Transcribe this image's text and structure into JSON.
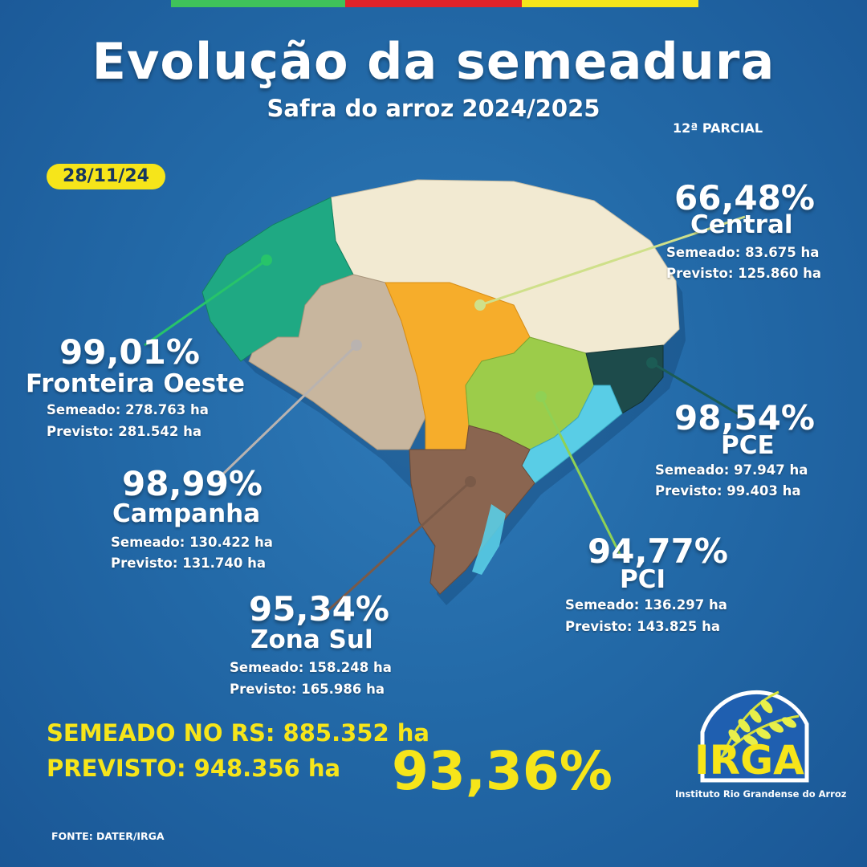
{
  "colors": {
    "background": "#236aa8",
    "flag_green": "#3fc25a",
    "flag_red": "#e0232a",
    "flag_yellow": "#f6e51a",
    "highlight_yellow": "#f6e51a",
    "region_central": "#f2ead2",
    "region_fronteira_oeste": "#1fa983",
    "region_campanha": "#c8b69e",
    "region_central_orange": "#f6ad2b",
    "region_pci_green": "#9ccc4a",
    "region_pce_dark": "#1d4b4b",
    "region_pce_cyan": "#59cde6",
    "region_zona_sul": "#8a6550"
  },
  "header": {
    "title": "Evolução da semeadura",
    "subtitle": "Safra do arroz 2024/2025",
    "parcial": "12ª PARCIAL",
    "date": "28/11/24"
  },
  "regions": {
    "central": {
      "percent": "66,48%",
      "name": "Central",
      "semeado": "Semeado: 83.675 ha",
      "previsto": "Previsto: 125.860 ha"
    },
    "fronteira_oeste": {
      "percent": "99,01%",
      "name": "Fronteira Oeste",
      "semeado": "Semeado: 278.763 ha",
      "previsto": "Previsto:  281.542 ha"
    },
    "campanha": {
      "percent": "98,99%",
      "name": "Campanha",
      "semeado": "Semeado: 130.422 ha",
      "previsto": "Previsto: 131.740 ha"
    },
    "pce": {
      "percent": "98,54%",
      "name": "PCE",
      "semeado": "Semeado: 97.947 ha",
      "previsto": "Previsto:  99.403 ha"
    },
    "pci": {
      "percent": "94,77%",
      "name": "PCI",
      "semeado": "Semeado: 136.297 ha",
      "previsto": "Previsto:  143.825 ha"
    },
    "zona_sul": {
      "percent": "95,34%",
      "name": "Zona Sul",
      "semeado": "Semeado: 158.248 ha",
      "previsto": "Previsto:  165.986 ha"
    }
  },
  "totals": {
    "semeado": "SEMEADO NO RS: 885.352 ha",
    "previsto": "PREVISTO: 948.356 ha",
    "percent": "93,36%"
  },
  "footer": {
    "fonte": "FONTE: DATER/IRGA"
  },
  "logo": {
    "name": "IRGA",
    "subtitle": "Instituto Rio Grandense do Arroz"
  }
}
